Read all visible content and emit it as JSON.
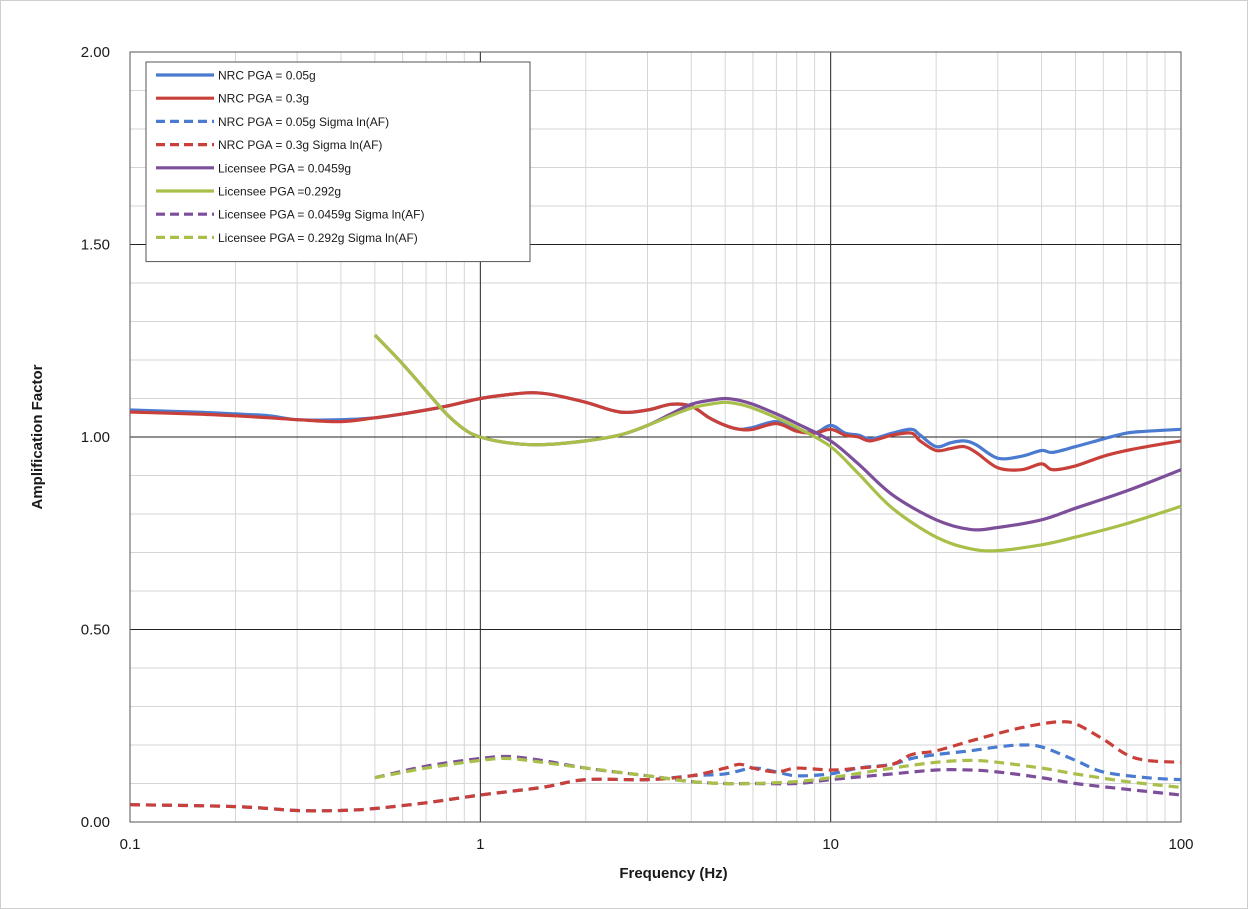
{
  "chart_data": {
    "type": "line",
    "xlabel": "Frequency (Hz)",
    "ylabel": "Amplification Factor",
    "x_scale": "log",
    "xlim": [
      0.1,
      100
    ],
    "ylim": [
      0,
      2
    ],
    "x_ticks": [
      {
        "value": 0.1,
        "label": "0.1"
      },
      {
        "value": 1,
        "label": "1"
      },
      {
        "value": 10,
        "label": "10"
      },
      {
        "value": 100,
        "label": "100"
      }
    ],
    "y_ticks": [
      {
        "value": 0,
        "label": "0.00"
      },
      {
        "value": 0.5,
        "label": "0.50"
      },
      {
        "value": 1.0,
        "label": "1.00"
      },
      {
        "value": 1.5,
        "label": "1.50"
      },
      {
        "value": 2.0,
        "label": "2.00"
      }
    ],
    "grid": true,
    "legend_position": "top-left",
    "series": [
      {
        "name": "NRC PGA = 0.05g",
        "color": "#4a7bd0",
        "dash": "solid",
        "x": [
          0.1,
          0.15,
          0.2,
          0.25,
          0.3,
          0.4,
          0.5,
          0.6,
          0.7,
          0.8,
          1.0,
          1.2,
          1.4,
          1.6,
          2.0,
          2.5,
          3.0,
          3.5,
          4.0,
          4.5,
          5.0,
          5.5,
          6.0,
          7.0,
          8.0,
          9.0,
          10,
          11,
          12,
          13,
          15,
          17,
          18,
          20,
          22,
          24,
          26,
          30,
          35,
          40,
          43,
          50,
          60,
          70,
          80,
          100
        ],
        "y": [
          1.07,
          1.065,
          1.06,
          1.055,
          1.045,
          1.045,
          1.05,
          1.06,
          1.07,
          1.08,
          1.1,
          1.11,
          1.115,
          1.11,
          1.09,
          1.065,
          1.07,
          1.085,
          1.08,
          1.05,
          1.03,
          1.02,
          1.025,
          1.04,
          1.02,
          1.01,
          1.03,
          1.01,
          1.005,
          0.995,
          1.01,
          1.02,
          1.005,
          0.975,
          0.985,
          0.99,
          0.98,
          0.945,
          0.95,
          0.965,
          0.96,
          0.975,
          0.995,
          1.01,
          1.015,
          1.02
        ]
      },
      {
        "name": "NRC PGA = 0.3g",
        "color": "#c9403a",
        "dash": "solid",
        "x": [
          0.1,
          0.15,
          0.2,
          0.25,
          0.3,
          0.4,
          0.5,
          0.6,
          0.7,
          0.8,
          1.0,
          1.2,
          1.4,
          1.6,
          2.0,
          2.5,
          3.0,
          3.5,
          4.0,
          4.5,
          5.0,
          5.5,
          6.0,
          7.0,
          8.0,
          9.0,
          10,
          11,
          12,
          13,
          15,
          17,
          18,
          20,
          22,
          24,
          26,
          30,
          35,
          40,
          43,
          50,
          60,
          70,
          80,
          100
        ],
        "y": [
          1.065,
          1.06,
          1.055,
          1.05,
          1.045,
          1.04,
          1.05,
          1.06,
          1.07,
          1.08,
          1.1,
          1.11,
          1.115,
          1.11,
          1.09,
          1.065,
          1.07,
          1.085,
          1.08,
          1.05,
          1.03,
          1.02,
          1.02,
          1.035,
          1.015,
          1.01,
          1.02,
          1.005,
          1.0,
          0.99,
          1.005,
          1.01,
          0.99,
          0.965,
          0.97,
          0.975,
          0.96,
          0.92,
          0.915,
          0.93,
          0.915,
          0.925,
          0.95,
          0.965,
          0.975,
          0.99
        ]
      },
      {
        "name": "NRC PGA = 0.05g Sigma ln(AF)",
        "color": "#4a7bd0",
        "dash": "dashed",
        "x": [
          0.1,
          0.2,
          0.3,
          0.4,
          0.5,
          0.7,
          1.0,
          1.5,
          2.0,
          3.0,
          4.0,
          5.0,
          6.0,
          7.0,
          8.0,
          10,
          12,
          15,
          17,
          20,
          25,
          30,
          35,
          40,
          50,
          60,
          80,
          100
        ],
        "y": [
          0.045,
          0.04,
          0.03,
          0.03,
          0.035,
          0.05,
          0.07,
          0.09,
          0.11,
          0.11,
          0.12,
          0.125,
          0.14,
          0.13,
          0.12,
          0.125,
          0.14,
          0.15,
          0.165,
          0.175,
          0.185,
          0.195,
          0.2,
          0.195,
          0.16,
          0.13,
          0.115,
          0.11
        ]
      },
      {
        "name": "NRC PGA = 0.3g Sigma ln(AF)",
        "color": "#c9403a",
        "dash": "dashed",
        "x": [
          0.1,
          0.2,
          0.3,
          0.4,
          0.5,
          0.7,
          1.0,
          1.5,
          2.0,
          3.0,
          4.0,
          5.0,
          5.5,
          6.0,
          7.0,
          8.0,
          10,
          12,
          15,
          17,
          20,
          25,
          30,
          35,
          40,
          45,
          50,
          60,
          70,
          80,
          100
        ],
        "y": [
          0.045,
          0.04,
          0.03,
          0.03,
          0.035,
          0.05,
          0.07,
          0.09,
          0.11,
          0.11,
          0.12,
          0.14,
          0.15,
          0.14,
          0.13,
          0.14,
          0.135,
          0.14,
          0.15,
          0.175,
          0.185,
          0.21,
          0.23,
          0.245,
          0.255,
          0.26,
          0.255,
          0.215,
          0.175,
          0.16,
          0.155
        ]
      },
      {
        "name": "Licensee PGA = 0.0459g",
        "color": "#7d4f9a",
        "dash": "solid",
        "x": [
          0.5,
          0.6,
          0.7,
          0.8,
          0.9,
          1.0,
          1.2,
          1.5,
          2.0,
          2.5,
          3.0,
          3.5,
          4.0,
          4.5,
          5.0,
          5.5,
          6.0,
          7.0,
          8.0,
          10,
          12,
          15,
          20,
          25,
          30,
          40,
          50,
          70,
          100
        ],
        "y": [
          1.265,
          1.19,
          1.12,
          1.06,
          1.02,
          1.0,
          0.985,
          0.98,
          0.99,
          1.005,
          1.03,
          1.06,
          1.085,
          1.095,
          1.1,
          1.095,
          1.085,
          1.06,
          1.035,
          0.99,
          0.93,
          0.85,
          0.785,
          0.76,
          0.765,
          0.785,
          0.815,
          0.86,
          0.915
        ]
      },
      {
        "name": "Licensee PGA =0.292g",
        "color": "#a8c04a",
        "dash": "solid",
        "x": [
          0.5,
          0.6,
          0.7,
          0.8,
          0.9,
          1.0,
          1.2,
          1.5,
          2.0,
          2.5,
          3.0,
          3.5,
          4.0,
          4.5,
          5.0,
          5.5,
          6.0,
          7.0,
          8.0,
          10,
          12,
          15,
          20,
          25,
          30,
          40,
          50,
          70,
          100
        ],
        "y": [
          1.265,
          1.19,
          1.12,
          1.06,
          1.02,
          1.0,
          0.985,
          0.98,
          0.99,
          1.005,
          1.03,
          1.055,
          1.075,
          1.085,
          1.09,
          1.085,
          1.075,
          1.05,
          1.025,
          0.975,
          0.905,
          0.815,
          0.74,
          0.71,
          0.705,
          0.72,
          0.74,
          0.775,
          0.82
        ]
      },
      {
        "name": "Licensee PGA = 0.0459g Sigma ln(AF)",
        "color": "#7d4f9a",
        "dash": "dashed",
        "x": [
          0.5,
          0.7,
          1.0,
          1.2,
          1.5,
          2.0,
          3.0,
          4.0,
          5.0,
          6.0,
          8.0,
          10,
          15,
          20,
          25,
          30,
          40,
          50,
          70,
          100
        ],
        "y": [
          0.115,
          0.145,
          0.165,
          0.17,
          0.16,
          0.14,
          0.12,
          0.105,
          0.1,
          0.1,
          0.1,
          0.11,
          0.125,
          0.135,
          0.135,
          0.13,
          0.115,
          0.1,
          0.085,
          0.07
        ]
      },
      {
        "name": "Licensee PGA = 0.292g Sigma ln(AF)",
        "color": "#a8c04a",
        "dash": "dashed",
        "x": [
          0.5,
          0.7,
          1.0,
          1.2,
          1.5,
          2.0,
          3.0,
          4.0,
          5.0,
          6.0,
          8.0,
          10,
          15,
          20,
          25,
          30,
          40,
          50,
          70,
          100
        ],
        "y": [
          0.115,
          0.14,
          0.16,
          0.165,
          0.155,
          0.14,
          0.12,
          0.105,
          0.1,
          0.1,
          0.105,
          0.115,
          0.14,
          0.155,
          0.16,
          0.155,
          0.14,
          0.125,
          0.105,
          0.09
        ]
      }
    ]
  }
}
